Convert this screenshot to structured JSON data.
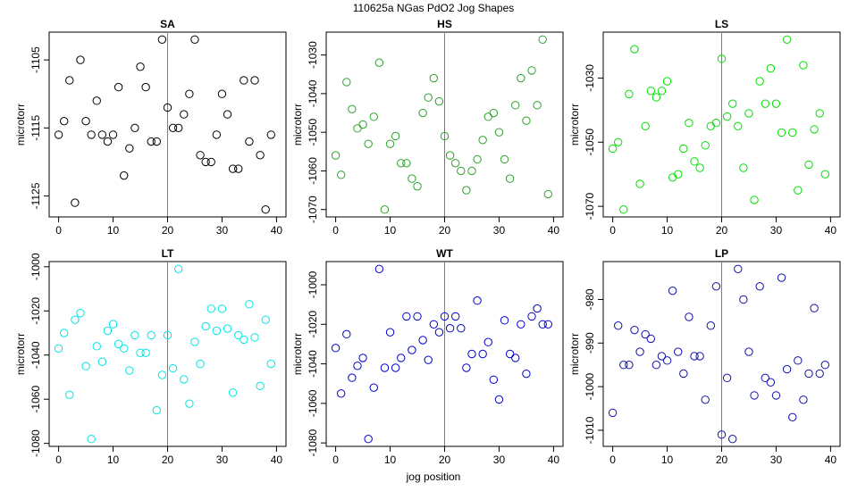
{
  "title": "110625a   NGas PdO2 Jog Shapes",
  "xlabel": "jog position",
  "chart_data": [
    {
      "type": "scatter",
      "title": "SA",
      "ylabel": "microtorr",
      "xlim": [
        0,
        40
      ],
      "ylim": [
        -1127,
        -1102
      ],
      "xticks": [
        0,
        10,
        20,
        30,
        40
      ],
      "yticks": [
        -1105,
        -1115,
        -1125
      ],
      "vline_x": 20,
      "color": "#000000",
      "x": [
        0,
        1,
        2,
        3,
        4,
        5,
        6,
        7,
        8,
        9,
        10,
        11,
        12,
        13,
        14,
        15,
        16,
        17,
        18,
        19,
        20,
        21,
        22,
        23,
        24,
        25,
        26,
        27,
        28,
        29,
        30,
        31,
        32,
        33,
        34,
        35,
        36,
        37,
        38,
        39
      ],
      "y": [
        -1116,
        -1114,
        -1108,
        -1126,
        -1105,
        -1114,
        -1116,
        -1111,
        -1116,
        -1117,
        -1116,
        -1109,
        -1122,
        -1118,
        -1115,
        -1106,
        -1109,
        -1117,
        -1117,
        -1102,
        -1112,
        -1115,
        -1115,
        -1113,
        -1110,
        -1102,
        -1119,
        -1120,
        -1120,
        -1116,
        -1110,
        -1113,
        -1121,
        -1121,
        -1108,
        -1117,
        -1108,
        -1119,
        -1127,
        -1116
      ]
    },
    {
      "type": "scatter",
      "title": "HS",
      "ylabel": "microtorr",
      "xlim": [
        0,
        40
      ],
      "ylim": [
        -1070,
        -1026
      ],
      "xticks": [
        0,
        10,
        20,
        30,
        40
      ],
      "yticks": [
        -1030,
        -1040,
        -1050,
        -1060,
        -1070
      ],
      "vline_x": 20,
      "color": "#2ca02c",
      "x": [
        0,
        1,
        2,
        3,
        4,
        5,
        6,
        7,
        8,
        9,
        10,
        11,
        12,
        13,
        14,
        15,
        16,
        17,
        18,
        19,
        20,
        21,
        22,
        23,
        24,
        25,
        26,
        27,
        28,
        29,
        30,
        31,
        32,
        33,
        34,
        35,
        36,
        37,
        38,
        39
      ],
      "y": [
        -1056,
        -1061,
        -1037,
        -1044,
        -1049,
        -1048,
        -1053,
        -1046,
        -1032,
        -1070,
        -1053,
        -1051,
        -1058,
        -1058,
        -1062,
        -1064,
        -1045,
        -1041,
        -1036,
        -1042,
        -1051,
        -1056,
        -1058,
        -1060,
        -1065,
        -1060,
        -1057,
        -1052,
        -1046,
        -1045,
        -1050,
        -1057,
        -1062,
        -1043,
        -1036,
        -1047,
        -1034,
        -1043,
        -1026,
        -1066
      ]
    },
    {
      "type": "scatter",
      "title": "LS",
      "ylabel": "microtorr",
      "xlim": [
        0,
        40
      ],
      "ylim": [
        -1071,
        -1018
      ],
      "xticks": [
        0,
        10,
        20,
        30,
        40
      ],
      "yticks": [
        -1030,
        -1050,
        -1070
      ],
      "vline_x": 20,
      "color": "#00e000",
      "x": [
        0,
        1,
        2,
        3,
        4,
        5,
        6,
        7,
        8,
        9,
        10,
        11,
        12,
        13,
        14,
        15,
        16,
        17,
        18,
        19,
        20,
        21,
        22,
        23,
        24,
        25,
        26,
        27,
        28,
        29,
        30,
        31,
        32,
        33,
        34,
        35,
        36,
        37,
        38,
        39
      ],
      "y": [
        -1052,
        -1050,
        -1071,
        -1035,
        -1021,
        -1063,
        -1045,
        -1034,
        -1036,
        -1034,
        -1031,
        -1061,
        -1060,
        -1052,
        -1044,
        -1056,
        -1058,
        -1051,
        -1045,
        -1044,
        -1024,
        -1042,
        -1038,
        -1045,
        -1058,
        -1041,
        -1068,
        -1031,
        -1038,
        -1027,
        -1038,
        -1047,
        -1018,
        -1047,
        -1065,
        -1026,
        -1057,
        -1046,
        -1041,
        -1060
      ]
    },
    {
      "type": "scatter",
      "title": "LT",
      "ylabel": "microtorr",
      "xlim": [
        0,
        40
      ],
      "ylim": [
        -1078,
        -1001
      ],
      "xticks": [
        0,
        10,
        20,
        30,
        40
      ],
      "yticks": [
        -1000,
        -1020,
        -1040,
        -1060,
        -1080
      ],
      "vline_x": 20,
      "color": "#00e5e5",
      "x": [
        0,
        1,
        2,
        3,
        4,
        5,
        6,
        7,
        8,
        9,
        10,
        11,
        12,
        13,
        14,
        15,
        16,
        17,
        18,
        19,
        20,
        21,
        22,
        23,
        24,
        25,
        26,
        27,
        28,
        29,
        30,
        31,
        32,
        33,
        34,
        35,
        36,
        37,
        38,
        39
      ],
      "y": [
        -1037,
        -1030,
        -1058,
        -1024,
        -1021,
        -1045,
        -1078,
        -1036,
        -1043,
        -1029,
        -1026,
        -1035,
        -1037,
        -1047,
        -1031,
        -1039,
        -1039,
        -1031,
        -1065,
        -1049,
        -1031,
        -1046,
        -1001,
        -1051,
        -1062,
        -1034,
        -1044,
        -1027,
        -1019,
        -1029,
        -1019,
        -1028,
        -1057,
        -1031,
        -1033,
        -1017,
        -1032,
        -1054,
        -1024,
        -1044
      ]
    },
    {
      "type": "scatter",
      "title": "WT",
      "ylabel": "microtorr",
      "xlim": [
        0,
        40
      ],
      "ylim": [
        -1078,
        -992
      ],
      "xticks": [
        0,
        10,
        20,
        30,
        40
      ],
      "yticks": [
        -1000,
        -1020,
        -1040,
        -1060,
        -1080
      ],
      "vline_x": 20,
      "color": "#0000cc",
      "x": [
        0,
        1,
        2,
        3,
        4,
        5,
        6,
        7,
        8,
        9,
        10,
        11,
        12,
        13,
        14,
        15,
        16,
        17,
        18,
        19,
        20,
        21,
        22,
        23,
        24,
        25,
        26,
        27,
        28,
        29,
        30,
        31,
        32,
        33,
        34,
        35,
        36,
        37,
        38,
        39
      ],
      "y": [
        -1032,
        -1055,
        -1025,
        -1047,
        -1041,
        -1037,
        -1078,
        -1052,
        -992,
        -1042,
        -1024,
        -1042,
        -1037,
        -1016,
        -1033,
        -1016,
        -1028,
        -1038,
        -1020,
        -1024,
        -1016,
        -1022,
        -1016,
        -1022,
        -1042,
        -1035,
        -1008,
        -1035,
        -1029,
        -1048,
        -1058,
        -1018,
        -1035,
        -1037,
        -1020,
        -1045,
        -1016,
        -1012,
        -1020,
        -1020
      ]
    },
    {
      "type": "scatter",
      "title": "LP",
      "ylabel": "microtorr",
      "xlim": [
        0,
        40
      ],
      "ylim": [
        -1012,
        -973
      ],
      "xticks": [
        0,
        10,
        20,
        30,
        40
      ],
      "yticks": [
        -980,
        -990,
        -1000,
        -1010
      ],
      "vline_x": 20,
      "color": "#1010aa",
      "x": [
        0,
        1,
        2,
        3,
        4,
        5,
        6,
        7,
        8,
        9,
        10,
        11,
        12,
        13,
        14,
        15,
        16,
        17,
        18,
        19,
        20,
        21,
        22,
        23,
        24,
        25,
        26,
        27,
        28,
        29,
        30,
        31,
        32,
        33,
        34,
        35,
        36,
        37,
        38,
        39
      ],
      "y": [
        -1006,
        -986,
        -995,
        -995,
        -987,
        -992,
        -988,
        -989,
        -995,
        -993,
        -994,
        -978,
        -992,
        -997,
        -984,
        -993,
        -993,
        -1003,
        -986,
        -977,
        -1011,
        -998,
        -1012,
        -973,
        -980,
        -992,
        -1002,
        -977,
        -998,
        -999,
        -1002,
        -975,
        -996,
        -1007,
        -994,
        -1003,
        -997,
        -982,
        -997,
        -995
      ]
    }
  ]
}
